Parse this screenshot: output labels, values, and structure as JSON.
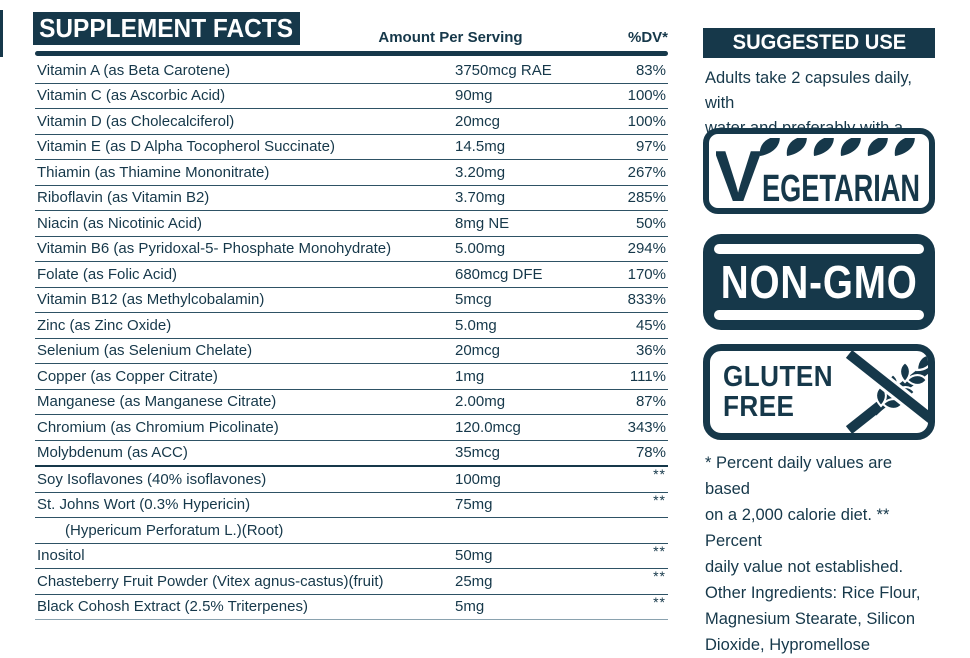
{
  "colors": {
    "ink": "#16384a",
    "background": "#ffffff",
    "divider": "#2e5265"
  },
  "supplement_facts": {
    "title": "SUPPLEMENT FACTS",
    "columns": {
      "amount": "Amount Per Serving",
      "dv": "%DV*"
    },
    "rows": [
      {
        "label": "Vitamin A (as Beta Carotene)",
        "amount": "3750mcg RAE",
        "dv": "83%"
      },
      {
        "label": "Vitamin C (as Ascorbic Acid)",
        "amount": "90mg",
        "dv": "100%"
      },
      {
        "label": "Vitamin D (as Cholecalciferol)",
        "amount": "20mcg",
        "dv": "100%"
      },
      {
        "label": "Vitamin E (as D Alpha Tocopherol Succinate)",
        "amount": "14.5mg",
        "dv": "97%"
      },
      {
        "label": "Thiamin (as Thiamine Mononitrate)",
        "amount": "3.20mg",
        "dv": "267%"
      },
      {
        "label": "Riboflavin (as Vitamin B2)",
        "amount": "3.70mg",
        "dv": "285%"
      },
      {
        "label": "Niacin (as Nicotinic Acid)",
        "amount": "8mg NE",
        "dv": "50%"
      },
      {
        "label": "Vitamin B6 (as Pyridoxal-5- Phosphate Monohydrate)",
        "amount": "5.00mg",
        "dv": "294%"
      },
      {
        "label": "Folate (as Folic Acid)",
        "amount": "680mcg DFE",
        "dv": "170%"
      },
      {
        "label": "Vitamin B12 (as Methylcobalamin)",
        "amount": "5mcg",
        "dv": "833%"
      },
      {
        "label": "Zinc (as Zinc Oxide)",
        "amount": "5.0mg",
        "dv": "45%"
      },
      {
        "label": "Selenium (as Selenium Chelate)",
        "amount": "20mcg",
        "dv": "36%"
      },
      {
        "label": "Copper (as Copper Citrate)",
        "amount": "1mg",
        "dv": "111%"
      },
      {
        "label": "Manganese (as Manganese Citrate)",
        "amount": "2.00mg",
        "dv": "87%"
      },
      {
        "label": "Chromium (as Chromium Picolinate)",
        "amount": "120.0mcg",
        "dv": "343%"
      },
      {
        "label": "Molybdenum (as ACC)",
        "amount": "35mcg",
        "dv": "78%"
      },
      {
        "label": "Soy Isoflavones (40% isoflavones)",
        "amount": "100mg",
        "dv": "**",
        "section_break": true
      },
      {
        "label": "St. Johns Wort (0.3% Hypericin)",
        "amount": "75mg",
        "dv": "**"
      },
      {
        "label": "(Hypericum Perforatum L.)(Root)",
        "amount": "",
        "dv": "",
        "indent": true
      },
      {
        "label": "Inositol",
        "amount": "50mg",
        "dv": "**"
      },
      {
        "label": "Chasteberry Fruit Powder (Vitex agnus-castus)(fruit)",
        "amount": "25mg",
        "dv": "**"
      },
      {
        "label": "Black Cohosh Extract (2.5% Triterpenes)",
        "amount": "5mg",
        "dv": "**"
      }
    ]
  },
  "suggested_use": {
    "title": "SUGGESTED USE",
    "lines": [
      "Adults take 2 capsules daily, with",
      "water and preferably with a meal."
    ]
  },
  "badges": {
    "vegetarian": {
      "initial": "V",
      "rest": "EGETARIAN",
      "label": "VEGETARIAN"
    },
    "non_gmo": {
      "label": "NON-GMO"
    },
    "gluten_free": {
      "line1": "GLUTEN",
      "line2": "FREE"
    }
  },
  "footnote": {
    "lines": [
      "* Percent daily values are based",
      "on a 2,000 calorie diet. ** Percent",
      "daily value not established.",
      "Other Ingredients: Rice Flour,",
      "Magnesium Stearate, Silicon",
      "Dioxide, Hypromellose"
    ]
  }
}
